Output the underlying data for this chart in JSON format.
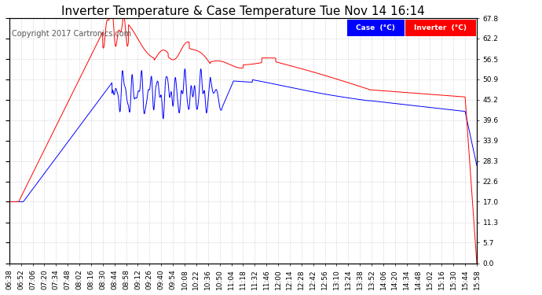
{
  "title": "Inverter Temperature & Case Temperature Tue Nov 14 16:14",
  "copyright": "Copyright 2017 Cartronics.com",
  "ylabel_right_ticks": [
    0.0,
    5.7,
    11.3,
    17.0,
    22.6,
    28.3,
    33.9,
    39.6,
    45.2,
    50.9,
    56.5,
    62.2,
    67.8
  ],
  "ylim": [
    0.0,
    67.8
  ],
  "case_color": "#0000FF",
  "inverter_color": "#FF0000",
  "background_color": "#FFFFFF",
  "plot_bg_color": "#FFFFFF",
  "grid_color": "#BBBBBB",
  "title_fontsize": 11,
  "tick_fontsize": 6.5,
  "copyright_fontsize": 7,
  "x_tick_labels": [
    "06:38",
    "06:52",
    "07:06",
    "07:20",
    "07:34",
    "07:48",
    "08:02",
    "08:16",
    "08:30",
    "08:44",
    "08:58",
    "09:12",
    "09:26",
    "09:40",
    "09:54",
    "10:08",
    "10:22",
    "10:36",
    "10:50",
    "11:04",
    "11:18",
    "11:32",
    "11:46",
    "12:00",
    "12:14",
    "12:28",
    "12:42",
    "12:56",
    "13:10",
    "13:24",
    "13:38",
    "13:52",
    "14:06",
    "14:20",
    "14:34",
    "14:48",
    "15:02",
    "15:16",
    "15:30",
    "15:44",
    "15:58"
  ]
}
